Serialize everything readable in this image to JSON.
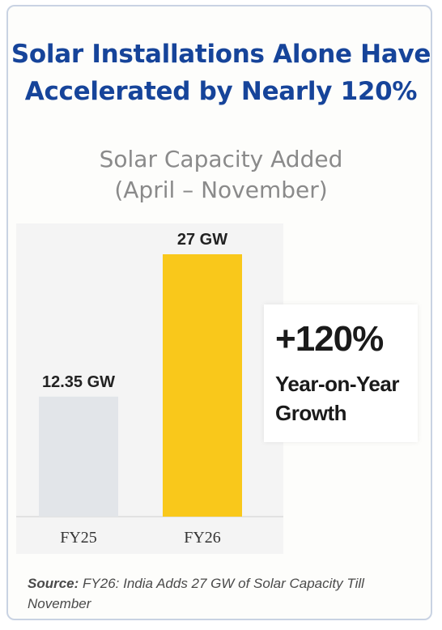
{
  "title": "Solar Installations Alone Have Accelerated by Nearly 120%",
  "subtitle_line1": "Solar Capacity Added",
  "subtitle_line2": "(April – November)",
  "callout": {
    "headline": "+120%",
    "text": "Year-on-Year Growth"
  },
  "source": {
    "label": "Source:",
    "text": "FY26: India Adds 27 GW of Solar Capacity Till November"
  },
  "colors": {
    "title": "#16449a",
    "bar_fy25": "#e2e5e9",
    "bar_fy26": "#f9c81b"
  },
  "chart_data": {
    "type": "bar",
    "title": "Solar Capacity Added",
    "categories": [
      "FY25",
      "FY26"
    ],
    "values": [
      12.35,
      27
    ],
    "value_labels": [
      "12.35 GW",
      "27 GW"
    ],
    "ylabel": "",
    "xlabel": "",
    "ylim": [
      0,
      27
    ],
    "grid": false
  }
}
